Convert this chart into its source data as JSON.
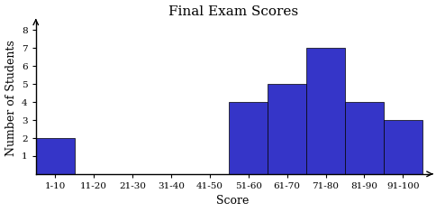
{
  "title": "Final Exam Scores",
  "xlabel": "Score",
  "ylabel": "Number of Students",
  "categories": [
    "1-10",
    "11-20",
    "21-30",
    "31-40",
    "41-50",
    "51-60",
    "61-70",
    "71-80",
    "81-90",
    "91-100"
  ],
  "values": [
    2,
    0,
    0,
    0,
    0,
    4,
    5,
    7,
    4,
    3
  ],
  "bar_color": "#3535C8",
  "bar_edge_color": "#000000",
  "ylim_max": 8.5,
  "yticks": [
    1,
    2,
    3,
    4,
    5,
    6,
    7,
    8
  ],
  "title_fontsize": 11,
  "axis_label_fontsize": 9,
  "tick_fontsize": 7.5,
  "background_color": "#ffffff"
}
